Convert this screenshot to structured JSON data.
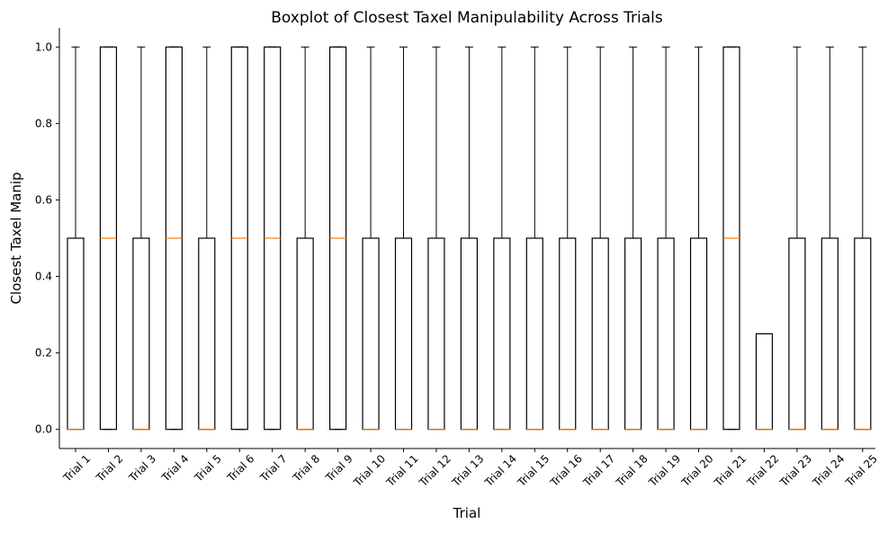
{
  "chart_data": {
    "type": "box",
    "title": "Boxplot of Closest Taxel Manipulability Across Trials",
    "xlabel": "Trial",
    "ylabel": "Closest Taxel Manip",
    "ylim": [
      -0.05,
      1.05
    ],
    "yticks": [
      0.0,
      0.2,
      0.4,
      0.6,
      0.8,
      1.0
    ],
    "ytick_labels": [
      "0.0",
      "0.2",
      "0.4",
      "0.6",
      "0.8",
      "1.0"
    ],
    "grid": false,
    "colors": {
      "box": "#000000",
      "median": "#ff7f0e",
      "axis": "#000000"
    },
    "categories": [
      "Trial 1",
      "Trial 2",
      "Trial 3",
      "Trial 4",
      "Trial 5",
      "Trial 6",
      "Trial 7",
      "Trial 8",
      "Trial 9",
      "Trial 10",
      "Trial 11",
      "Trial 12",
      "Trial 13",
      "Trial 14",
      "Trial 15",
      "Trial 16",
      "Trial 17",
      "Trial 18",
      "Trial 19",
      "Trial 20",
      "Trial 21",
      "Trial 22",
      "Trial 23",
      "Trial 24",
      "Trial 25"
    ],
    "boxes": [
      {
        "whislo": 0.0,
        "q1": 0.0,
        "med": 0.0,
        "q3": 0.5,
        "whishi": 1.0
      },
      {
        "whislo": 0.0,
        "q1": 0.0,
        "med": 0.5,
        "q3": 1.0,
        "whishi": 1.0
      },
      {
        "whislo": 0.0,
        "q1": 0.0,
        "med": 0.0,
        "q3": 0.5,
        "whishi": 1.0
      },
      {
        "whislo": 0.0,
        "q1": 0.0,
        "med": 0.5,
        "q3": 1.0,
        "whishi": 1.0
      },
      {
        "whislo": 0.0,
        "q1": 0.0,
        "med": 0.0,
        "q3": 0.5,
        "whishi": 1.0
      },
      {
        "whislo": 0.0,
        "q1": 0.0,
        "med": 0.5,
        "q3": 1.0,
        "whishi": 1.0
      },
      {
        "whislo": 0.0,
        "q1": 0.0,
        "med": 0.5,
        "q3": 1.0,
        "whishi": 1.0
      },
      {
        "whislo": 0.0,
        "q1": 0.0,
        "med": 0.0,
        "q3": 0.5,
        "whishi": 1.0
      },
      {
        "whislo": 0.0,
        "q1": 0.0,
        "med": 0.5,
        "q3": 1.0,
        "whishi": 1.0
      },
      {
        "whislo": 0.0,
        "q1": 0.0,
        "med": 0.0,
        "q3": 0.5,
        "whishi": 1.0
      },
      {
        "whislo": 0.0,
        "q1": 0.0,
        "med": 0.0,
        "q3": 0.5,
        "whishi": 1.0
      },
      {
        "whislo": 0.0,
        "q1": 0.0,
        "med": 0.0,
        "q3": 0.5,
        "whishi": 1.0
      },
      {
        "whislo": 0.0,
        "q1": 0.0,
        "med": 0.0,
        "q3": 0.5,
        "whishi": 1.0
      },
      {
        "whislo": 0.0,
        "q1": 0.0,
        "med": 0.0,
        "q3": 0.5,
        "whishi": 1.0
      },
      {
        "whislo": 0.0,
        "q1": 0.0,
        "med": 0.0,
        "q3": 0.5,
        "whishi": 1.0
      },
      {
        "whislo": 0.0,
        "q1": 0.0,
        "med": 0.0,
        "q3": 0.5,
        "whishi": 1.0
      },
      {
        "whislo": 0.0,
        "q1": 0.0,
        "med": 0.0,
        "q3": 0.5,
        "whishi": 1.0
      },
      {
        "whislo": 0.0,
        "q1": 0.0,
        "med": 0.0,
        "q3": 0.5,
        "whishi": 1.0
      },
      {
        "whislo": 0.0,
        "q1": 0.0,
        "med": 0.0,
        "q3": 0.5,
        "whishi": 1.0
      },
      {
        "whislo": 0.0,
        "q1": 0.0,
        "med": 0.0,
        "q3": 0.5,
        "whishi": 1.0
      },
      {
        "whislo": 0.0,
        "q1": 0.0,
        "med": 0.5,
        "q3": 1.0,
        "whishi": 1.0
      },
      {
        "whislo": 0.0,
        "q1": 0.0,
        "med": 0.0,
        "q3": 0.25,
        "whishi": 0.25
      },
      {
        "whislo": 0.0,
        "q1": 0.0,
        "med": 0.0,
        "q3": 0.5,
        "whishi": 1.0
      },
      {
        "whislo": 0.0,
        "q1": 0.0,
        "med": 0.0,
        "q3": 0.5,
        "whishi": 1.0
      },
      {
        "whislo": 0.0,
        "q1": 0.0,
        "med": 0.0,
        "q3": 0.5,
        "whishi": 1.0
      }
    ]
  }
}
